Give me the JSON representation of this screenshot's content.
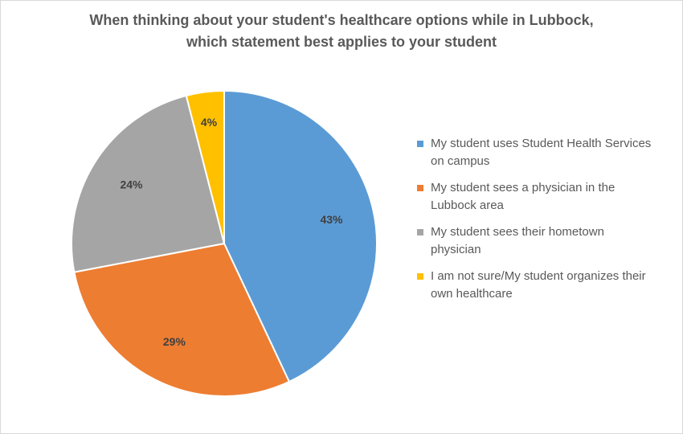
{
  "chart_data": {
    "type": "pie",
    "title_lines": [
      "When thinking about your student's healthcare options while in Lubbock,",
      "which statement best applies to your student"
    ],
    "legend_position": "right",
    "slices": [
      {
        "name": "My student uses Student Health Services on campus",
        "label": "43%",
        "value": 43,
        "color": "#5b9bd5"
      },
      {
        "name": "My student sees a physician in the Lubbock area",
        "label": "29%",
        "value": 29,
        "color": "#ed7d31"
      },
      {
        "name": "My student sees their hometown physician",
        "label": "24%",
        "value": 24,
        "color": "#a5a5a5"
      },
      {
        "name": "I am not sure/My student organizes their own healthcare",
        "label": "4%",
        "value": 4,
        "color": "#ffc000"
      }
    ],
    "legend_lines": [
      [
        "My student uses Student Health Services",
        "on campus"
      ],
      [
        "My student sees a physician in the",
        "Lubbock area"
      ],
      [
        "My student sees their hometown",
        "physician"
      ],
      [
        "I am not sure/My student organizes their",
        "own healthcare"
      ]
    ]
  }
}
